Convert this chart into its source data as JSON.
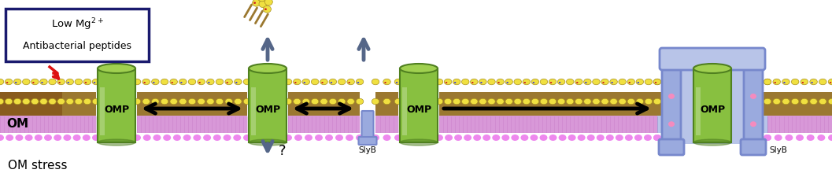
{
  "bg_color": "#ffffff",
  "membrane_brown_color": "#9B7830",
  "membrane_brown_stress": "#7B4510",
  "membrane_tan_color": "#C8A870",
  "lipid_head_yellow": "#F0E040",
  "lipid_head_outline": "#A89020",
  "lipid_red_dot": "#CC2020",
  "lipid_blue_dot": "#4444CC",
  "inner_mem_color": "#D898D8",
  "inner_mem_stripe": "#C070C0",
  "pink_circle": "#EE88EE",
  "omp_green": "#88C040",
  "omp_green_dark": "#508020",
  "omp_green_light": "#AADD60",
  "omp_green_top": "#A0D050",
  "slyb_blue": "#7788CC",
  "slyb_light": "#9AAADE",
  "slyb_very_light": "#B8C4E8",
  "slyb_darkest": "#5566AA",
  "pink_dots_slyb": "#FF88BB",
  "arrow_gray": "#556688",
  "arrow_black": "#111111",
  "box_border": "#1a1a6e",
  "red_bolt": "#DD1111",
  "title_text": "OM stress",
  "label_OM": "OM",
  "label_OMP": "OMP",
  "label_SlyB": "SlyB"
}
